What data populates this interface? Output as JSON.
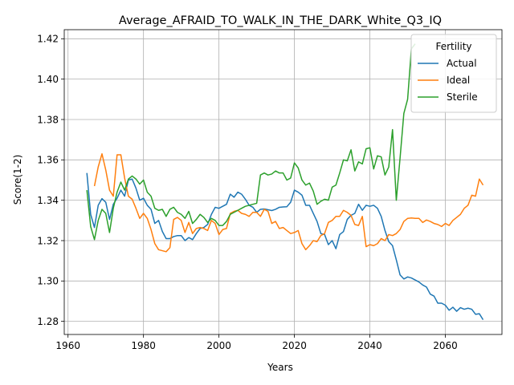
{
  "chart_data": {
    "type": "line",
    "title": "Average_AFRAID_TO_WALK_IN_THE_DARK_White_Q3_IQ",
    "xlabel": "Years",
    "ylabel": "Score(1-2)",
    "xlim": [
      1959,
      2075
    ],
    "ylim": [
      1.2735,
      1.4245
    ],
    "xticks": [
      1960,
      1980,
      2000,
      2020,
      2040,
      2060
    ],
    "yticks": [
      1.28,
      1.3,
      1.32,
      1.34,
      1.36,
      1.38,
      1.4,
      1.42
    ],
    "grid": true,
    "legend": {
      "title": "Fertility",
      "placement": "top-right"
    },
    "series": [
      {
        "name": "Actual",
        "color": "#1f77b4",
        "points": [
          [
            1965,
            1.3535
          ],
          [
            1966,
            1.333
          ],
          [
            1967,
            1.3265
          ],
          [
            1968,
            1.3375
          ],
          [
            1969,
            1.3408
          ],
          [
            1970,
            1.339
          ],
          [
            1971,
            1.3305
          ],
          [
            1972,
            1.338
          ],
          [
            1973,
            1.341
          ],
          [
            1974,
            1.345
          ],
          [
            1975,
            1.342
          ],
          [
            1976,
            1.35
          ],
          [
            1977,
            1.3505
          ],
          [
            1978,
            1.346
          ],
          [
            1979,
            1.34
          ],
          [
            1980,
            1.341
          ],
          [
            1981,
            1.3375
          ],
          [
            1982,
            1.3355
          ],
          [
            1983,
            1.3285
          ],
          [
            1984,
            1.33
          ],
          [
            1985,
            1.3245
          ],
          [
            1986,
            1.321
          ],
          [
            1987,
            1.321
          ],
          [
            1988,
            1.322
          ],
          [
            1989,
            1.3225
          ],
          [
            1990,
            1.3225
          ],
          [
            1991,
            1.32
          ],
          [
            1992,
            1.3215
          ],
          [
            1993,
            1.3205
          ],
          [
            1994,
            1.3235
          ],
          [
            1995,
            1.326
          ],
          [
            1996,
            1.3265
          ],
          [
            1997,
            1.328
          ],
          [
            1998,
            1.333
          ],
          [
            1999,
            1.3365
          ],
          [
            2000,
            1.336
          ],
          [
            2001,
            1.337
          ],
          [
            2002,
            1.338
          ],
          [
            2003,
            1.343
          ],
          [
            2004,
            1.3415
          ],
          [
            2005,
            1.344
          ],
          [
            2006,
            1.343
          ],
          [
            2007,
            1.3405
          ],
          [
            2008,
            1.3375
          ],
          [
            2009,
            1.3365
          ],
          [
            2010,
            1.334
          ],
          [
            2011,
            1.3355
          ],
          [
            2012,
            1.3357
          ],
          [
            2013,
            1.3353
          ],
          [
            2014,
            1.3349
          ],
          [
            2015,
            1.3355
          ],
          [
            2016,
            1.3365
          ],
          [
            2017,
            1.3367
          ],
          [
            2018,
            1.3368
          ],
          [
            2019,
            1.339
          ],
          [
            2020,
            1.345
          ],
          [
            2021,
            1.344
          ],
          [
            2022,
            1.3425
          ],
          [
            2023,
            1.3375
          ],
          [
            2024,
            1.3375
          ],
          [
            2025,
            1.3335
          ],
          [
            2026,
            1.3295
          ],
          [
            2027,
            1.3235
          ],
          [
            2028,
            1.323
          ],
          [
            2029,
            1.318
          ],
          [
            2030,
            1.32
          ],
          [
            2031,
            1.316
          ],
          [
            2032,
            1.323
          ],
          [
            2033,
            1.3245
          ],
          [
            2034,
            1.3305
          ],
          [
            2035,
            1.3325
          ],
          [
            2036,
            1.3335
          ],
          [
            2037,
            1.338
          ],
          [
            2038,
            1.335
          ],
          [
            2039,
            1.3375
          ],
          [
            2040,
            1.337
          ],
          [
            2041,
            1.3375
          ],
          [
            2042,
            1.336
          ],
          [
            2043,
            1.332
          ],
          [
            2044,
            1.325
          ],
          [
            2045,
            1.3195
          ],
          [
            2046,
            1.3175
          ],
          [
            2047,
            1.3105
          ],
          [
            2048,
            1.303
          ],
          [
            2049,
            1.301
          ],
          [
            2050,
            1.302
          ],
          [
            2051,
            1.3015
          ],
          [
            2052,
            1.3005
          ],
          [
            2053,
            1.2995
          ],
          [
            2054,
            1.298
          ],
          [
            2055,
            1.297
          ],
          [
            2056,
            1.2935
          ],
          [
            2057,
            1.2925
          ],
          [
            2058,
            1.289
          ],
          [
            2059,
            1.289
          ],
          [
            2060,
            1.288
          ],
          [
            2061,
            1.2855
          ],
          [
            2062,
            1.287
          ],
          [
            2063,
            1.285
          ],
          [
            2064,
            1.2868
          ],
          [
            2065,
            1.286
          ],
          [
            2066,
            1.2865
          ],
          [
            2067,
            1.286
          ],
          [
            2068,
            1.2835
          ],
          [
            2069,
            1.2838
          ],
          [
            2070,
            1.2808
          ]
        ]
      },
      {
        "name": "Ideal",
        "color": "#ff7f0e",
        "points": [
          [
            1967,
            1.347
          ],
          [
            1968,
            1.3565
          ],
          [
            1969,
            1.363
          ],
          [
            1970,
            1.355
          ],
          [
            1971,
            1.345
          ],
          [
            1972,
            1.342
          ],
          [
            1973,
            1.3625
          ],
          [
            1974,
            1.3625
          ],
          [
            1975,
            1.351
          ],
          [
            1976,
            1.342
          ],
          [
            1977,
            1.3405
          ],
          [
            1978,
            1.336
          ],
          [
            1979,
            1.331
          ],
          [
            1980,
            1.3335
          ],
          [
            1981,
            1.331
          ],
          [
            1982,
            1.3255
          ],
          [
            1983,
            1.3185
          ],
          [
            1984,
            1.3155
          ],
          [
            1985,
            1.315
          ],
          [
            1986,
            1.3145
          ],
          [
            1987,
            1.3165
          ],
          [
            1988,
            1.3305
          ],
          [
            1989,
            1.3315
          ],
          [
            1990,
            1.33
          ],
          [
            1991,
            1.324
          ],
          [
            1992,
            1.329
          ],
          [
            1993,
            1.3235
          ],
          [
            1994,
            1.326
          ],
          [
            1995,
            1.3265
          ],
          [
            1996,
            1.326
          ],
          [
            1997,
            1.325
          ],
          [
            1998,
            1.33
          ],
          [
            1999,
            1.3285
          ],
          [
            2000,
            1.323
          ],
          [
            2001,
            1.3255
          ],
          [
            2002,
            1.326
          ],
          [
            2003,
            1.3335
          ],
          [
            2004,
            1.3345
          ],
          [
            2005,
            1.335
          ],
          [
            2006,
            1.3335
          ],
          [
            2007,
            1.333
          ],
          [
            2008,
            1.332
          ],
          [
            2009,
            1.334
          ],
          [
            2010,
            1.334
          ],
          [
            2011,
            1.332
          ],
          [
            2012,
            1.3355
          ],
          [
            2013,
            1.3345
          ],
          [
            2014,
            1.3285
          ],
          [
            2015,
            1.3295
          ],
          [
            2016,
            1.326
          ],
          [
            2017,
            1.3265
          ],
          [
            2018,
            1.325
          ],
          [
            2019,
            1.3235
          ],
          [
            2020,
            1.324
          ],
          [
            2021,
            1.325
          ],
          [
            2022,
            1.3185
          ],
          [
            2023,
            1.3155
          ],
          [
            2024,
            1.3175
          ],
          [
            2025,
            1.32
          ],
          [
            2026,
            1.3195
          ],
          [
            2027,
            1.3225
          ],
          [
            2028,
            1.3235
          ],
          [
            2029,
            1.329
          ],
          [
            2030,
            1.33
          ],
          [
            2031,
            1.332
          ],
          [
            2032,
            1.332
          ],
          [
            2033,
            1.335
          ],
          [
            2034,
            1.334
          ],
          [
            2035,
            1.3325
          ],
          [
            2036,
            1.328
          ],
          [
            2037,
            1.3275
          ],
          [
            2038,
            1.332
          ],
          [
            2039,
            1.317
          ],
          [
            2040,
            1.318
          ],
          [
            2041,
            1.3175
          ],
          [
            2042,
            1.3185
          ],
          [
            2043,
            1.321
          ],
          [
            2044,
            1.32
          ],
          [
            2045,
            1.323
          ],
          [
            2046,
            1.3225
          ],
          [
            2047,
            1.3235
          ],
          [
            2048,
            1.3255
          ],
          [
            2049,
            1.3295
          ],
          [
            2050,
            1.331
          ],
          [
            2051,
            1.3312
          ],
          [
            2052,
            1.331
          ],
          [
            2053,
            1.331
          ],
          [
            2054,
            1.329
          ],
          [
            2055,
            1.3302
          ],
          [
            2056,
            1.3295
          ],
          [
            2057,
            1.3285
          ],
          [
            2058,
            1.328
          ],
          [
            2059,
            1.327
          ],
          [
            2060,
            1.3285
          ],
          [
            2061,
            1.3275
          ],
          [
            2062,
            1.33
          ],
          [
            2063,
            1.3315
          ],
          [
            2064,
            1.333
          ],
          [
            2065,
            1.336
          ],
          [
            2066,
            1.3375
          ],
          [
            2067,
            1.3425
          ],
          [
            2068,
            1.342
          ],
          [
            2069,
            1.3505
          ],
          [
            2070,
            1.3475
          ]
        ]
      },
      {
        "name": "Sterile",
        "color": "#2ca02c",
        "points": [
          [
            1965,
            1.345
          ],
          [
            1966,
            1.327
          ],
          [
            1967,
            1.3205
          ],
          [
            1968,
            1.33
          ],
          [
            1969,
            1.3355
          ],
          [
            1970,
            1.3335
          ],
          [
            1971,
            1.324
          ],
          [
            1972,
            1.336
          ],
          [
            1973,
            1.344
          ],
          [
            1974,
            1.349
          ],
          [
            1975,
            1.345
          ],
          [
            1976,
            1.3505
          ],
          [
            1977,
            1.352
          ],
          [
            1978,
            1.3505
          ],
          [
            1979,
            1.348
          ],
          [
            1980,
            1.35
          ],
          [
            1981,
            1.344
          ],
          [
            1982,
            1.342
          ],
          [
            1983,
            1.336
          ],
          [
            1984,
            1.335
          ],
          [
            1985,
            1.3355
          ],
          [
            1986,
            1.332
          ],
          [
            1987,
            1.3355
          ],
          [
            1988,
            1.3365
          ],
          [
            1989,
            1.334
          ],
          [
            1990,
            1.333
          ],
          [
            1991,
            1.331
          ],
          [
            1992,
            1.3345
          ],
          [
            1993,
            1.3285
          ],
          [
            1994,
            1.3305
          ],
          [
            1995,
            1.333
          ],
          [
            1996,
            1.3315
          ],
          [
            1997,
            1.329
          ],
          [
            1998,
            1.331
          ],
          [
            1999,
            1.33
          ],
          [
            2000,
            1.3275
          ],
          [
            2001,
            1.3275
          ],
          [
            2002,
            1.3295
          ],
          [
            2003,
            1.333
          ],
          [
            2004,
            1.334
          ],
          [
            2005,
            1.335
          ],
          [
            2006,
            1.336
          ],
          [
            2007,
            1.337
          ],
          [
            2008,
            1.3375
          ],
          [
            2009,
            1.338
          ],
          [
            2010,
            1.3385
          ],
          [
            2011,
            1.3525
          ],
          [
            2012,
            1.3535
          ],
          [
            2013,
            1.3525
          ],
          [
            2014,
            1.353
          ],
          [
            2015,
            1.3545
          ],
          [
            2016,
            1.3535
          ],
          [
            2017,
            1.3535
          ],
          [
            2018,
            1.35
          ],
          [
            2019,
            1.351
          ],
          [
            2020,
            1.3585
          ],
          [
            2021,
            1.356
          ],
          [
            2022,
            1.35
          ],
          [
            2023,
            1.3475
          ],
          [
            2024,
            1.3485
          ],
          [
            2025,
            1.3445
          ],
          [
            2026,
            1.338
          ],
          [
            2027,
            1.3395
          ],
          [
            2028,
            1.3405
          ],
          [
            2029,
            1.34
          ],
          [
            2030,
            1.3465
          ],
          [
            2031,
            1.3475
          ],
          [
            2032,
            1.3535
          ],
          [
            2033,
            1.36
          ],
          [
            2034,
            1.3595
          ],
          [
            2035,
            1.365
          ],
          [
            2036,
            1.3545
          ],
          [
            2037,
            1.359
          ],
          [
            2038,
            1.358
          ],
          [
            2039,
            1.3655
          ],
          [
            2040,
            1.366
          ],
          [
            2041,
            1.3555
          ],
          [
            2042,
            1.362
          ],
          [
            2043,
            1.3615
          ],
          [
            2044,
            1.3525
          ],
          [
            2045,
            1.3565
          ],
          [
            2046,
            1.375
          ],
          [
            2047,
            1.34
          ],
          [
            2048,
            1.361
          ],
          [
            2049,
            1.383
          ],
          [
            2050,
            1.39
          ],
          [
            2051,
            1.415
          ],
          [
            2052,
            1.4175
          ]
        ]
      }
    ]
  }
}
